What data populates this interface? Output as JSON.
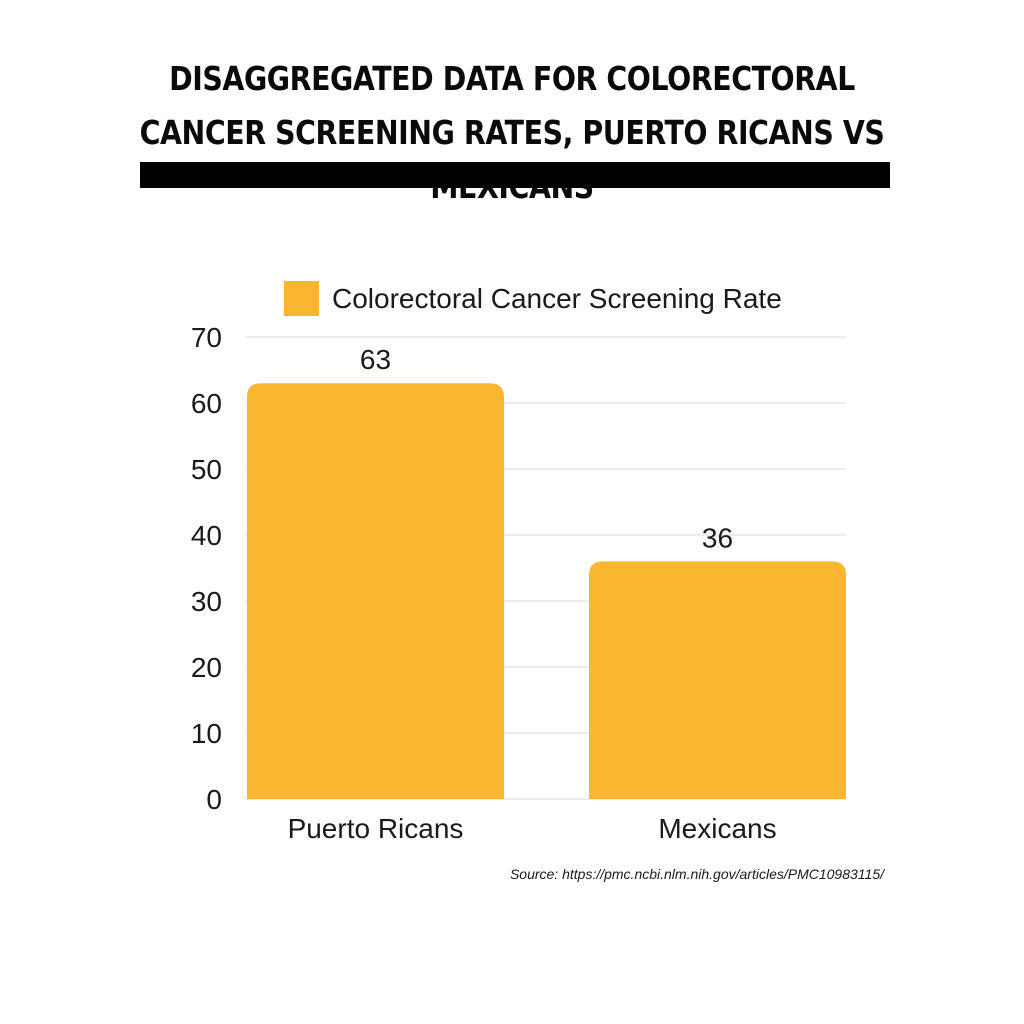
{
  "header": {
    "title": "DISAGGREGATED DATA FOR COLORECTORAL CANCER SCREENING RATES, PUERTO RICANS VS MEXICANS"
  },
  "footer": {
    "source": "Source: https://pmc.ncbi.nlm.nih.gov/articles/PMC10983115/"
  },
  "colors": {
    "bar": "#F9B731",
    "grid": "#d9d9d9",
    "text": "#1a1a1a"
  },
  "chart_data": {
    "type": "bar",
    "title": "",
    "xlabel": "",
    "ylabel": "",
    "categories": [
      "Puerto Ricans",
      "Mexicans"
    ],
    "series": [
      {
        "name": "Colorectoral Cancer Screening Rate",
        "values": [
          63,
          36
        ]
      }
    ],
    "data_labels": [
      "63",
      "36"
    ],
    "yticks": [
      "0",
      "10",
      "20",
      "30",
      "40",
      "50",
      "60",
      "70"
    ],
    "ylim": [
      0,
      70
    ],
    "grid": true,
    "legend": "top"
  }
}
